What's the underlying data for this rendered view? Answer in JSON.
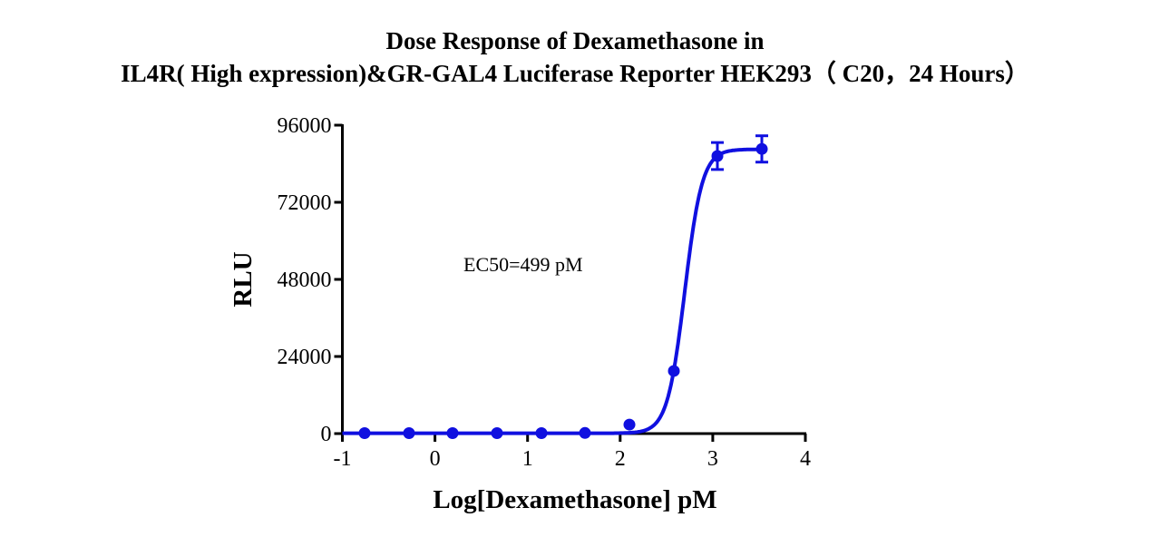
{
  "chart_data": {
    "type": "scatter",
    "title_line1": "Dose Response of Dexamethasone in",
    "title_line2": "IL4R( High expression)&GR-GAL4 Luciferase Reporter HEK293（ C20，24 Hours）",
    "xlabel": "Log[Dexamethasone] pM",
    "ylabel": "RLU",
    "xlim": [
      -1,
      4
    ],
    "ylim": [
      0,
      96000
    ],
    "xticks": [
      "-1",
      "0",
      "1",
      "2",
      "3",
      "4"
    ],
    "yticks": [
      "0",
      "24000",
      "48000",
      "72000",
      "96000"
    ],
    "annotation": "EC50=499 pM",
    "color": "#1010e0",
    "grid": false,
    "series": [
      {
        "x": [
          -0.76,
          -0.28,
          0.19,
          0.67,
          1.15,
          1.62,
          2.1,
          2.58,
          3.05,
          3.53
        ],
        "y": [
          150,
          150,
          150,
          150,
          150,
          200,
          2800,
          19500,
          86400,
          88600
        ],
        "error": [
          0,
          0,
          0,
          0,
          0,
          0,
          0,
          0,
          4200,
          4100
        ]
      }
    ],
    "fit": {
      "model": "4PL",
      "bottom": 100,
      "top": 88500,
      "logEC50": 2.698,
      "hill": 4.6
    }
  }
}
